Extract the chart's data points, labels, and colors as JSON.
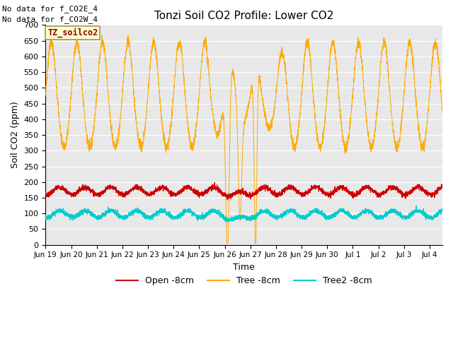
{
  "title": "Tonzi Soil CO2 Profile: Lower CO2",
  "ylabel": "Soil CO2 (ppm)",
  "xlabel": "Time",
  "top_left_text1": "No data for f_CO2E_4",
  "top_left_text2": "No data for f_CO2W_4",
  "legend_box_label": "TZ_soilco2",
  "ylim": [
    0,
    700
  ],
  "yticks": [
    0,
    50,
    100,
    150,
    200,
    250,
    300,
    350,
    400,
    450,
    500,
    550,
    600,
    650,
    700
  ],
  "colors": {
    "open": "#cc0000",
    "tree": "#ffaa00",
    "tree2": "#00cccc",
    "background": "#e8e8e8",
    "legend_box_bg": "#ffffcc",
    "legend_box_border": "#999966"
  },
  "legend_labels": [
    "Open -8cm",
    "Tree -8cm",
    "Tree2 -8cm"
  ],
  "xtick_labels": [
    "Jun 19",
    "Jun 20",
    "Jun 21",
    "Jun 22",
    "Jun 23",
    "Jun 24",
    "Jun 25",
    "Jun 26",
    "Jun 27",
    "Jun 28",
    "Jun 29",
    "Jun 30",
    "Jul 1",
    "Jul 2",
    "Jul 3",
    "Jul 4"
  ],
  "n_days": 15.5,
  "xlim": [
    0,
    15.5
  ]
}
